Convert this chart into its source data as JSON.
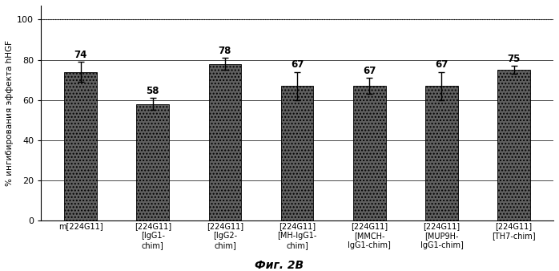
{
  "categories": [
    "m[224G11]",
    "[224G11]\n[IgG1-\nchim]",
    "[224G11]\n[IgG2-\nchim]",
    "[224G11]\n[MH-IgG1-\nchim]",
    "[224G11]\n[MMCH-\nIgG1-chim]",
    "[224G11]\n[MUP9H-\nIgG1-chim]",
    "[224G11]\n[TH7-chim]"
  ],
  "values": [
    74,
    58,
    78,
    67,
    67,
    67,
    75
  ],
  "errors": [
    5,
    3,
    3,
    7,
    4,
    7,
    2
  ],
  "bar_color": "#606060",
  "bar_hatch": "....",
  "ylabel": "% ингибирования эффекта hHGF",
  "ylim": [
    0,
    107
  ],
  "yticks": [
    0,
    20,
    40,
    60,
    80,
    100
  ],
  "caption": "Фиг. 2В",
  "background_color": "#ffffff",
  "value_fontsize": 8.5,
  "label_fontsize": 7,
  "ylabel_fontsize": 7.5
}
